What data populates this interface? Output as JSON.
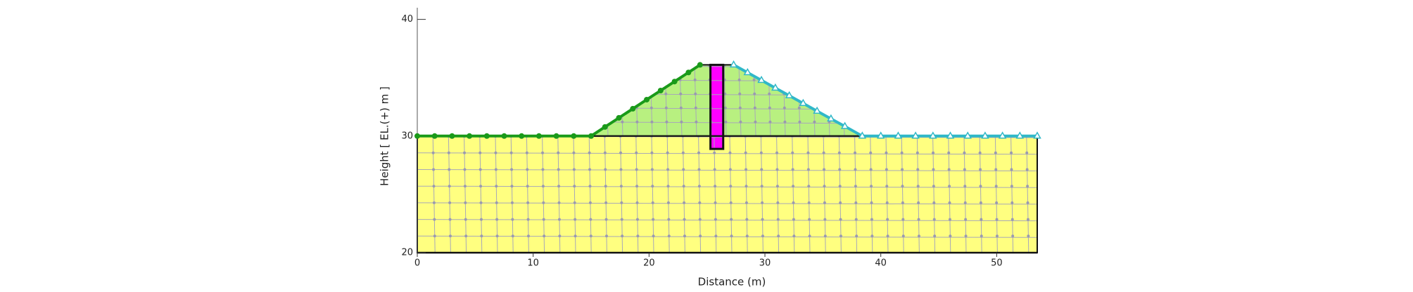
{
  "chart_data": {
    "type": "section",
    "x_label": "Distance (m)",
    "y_label": "Height [ EL.(+) m ]",
    "xlim": [
      0,
      53.5
    ],
    "ylim": [
      20,
      41
    ],
    "xticks": [
      0,
      10,
      20,
      30,
      40,
      50
    ],
    "yticks": [
      20,
      30,
      40
    ],
    "regions": [
      {
        "color": "#ffff80",
        "x": [
          0,
          53.5,
          53.5,
          0
        ],
        "y": [
          20,
          20,
          30,
          30
        ]
      },
      {
        "color": "#b8f080",
        "x": [
          15,
          24.4,
          27.3,
          38.4
        ],
        "y": [
          30,
          36.1,
          36.1,
          30
        ]
      },
      {
        "color": "#ff00ff",
        "x": [
          25.3,
          26.4,
          26.4,
          25.3
        ],
        "y": [
          28.9,
          28.9,
          36.1,
          36.1
        ]
      }
    ],
    "series": [
      {
        "color": "#1a9a1a",
        "marker": "circle",
        "x": [
          0,
          1.5,
          3,
          4.5,
          6,
          7.5,
          9,
          10.5,
          12,
          13.5,
          15,
          16.2,
          17.4,
          18.6,
          19.8,
          21,
          22.2,
          23.4,
          24.4
        ],
        "values": [
          30,
          30,
          30,
          30,
          30,
          30,
          30,
          30,
          30,
          30,
          30,
          30.78,
          31.56,
          32.34,
          33.12,
          33.9,
          34.67,
          35.45,
          36.1
        ]
      },
      {
        "color": "#30b8c8",
        "marker": "triangle",
        "x": [
          27.3,
          28.5,
          29.7,
          30.9,
          32.1,
          33.3,
          34.5,
          35.7,
          36.9,
          38.4,
          40,
          41.5,
          43,
          44.5,
          46,
          47.5,
          49,
          50.5,
          52,
          53.5
        ],
        "values": [
          36.1,
          35.44,
          34.78,
          34.12,
          33.46,
          32.8,
          32.14,
          31.48,
          30.83,
          30,
          30,
          30,
          30,
          30,
          30,
          30,
          30,
          30,
          30,
          30
        ]
      }
    ]
  }
}
